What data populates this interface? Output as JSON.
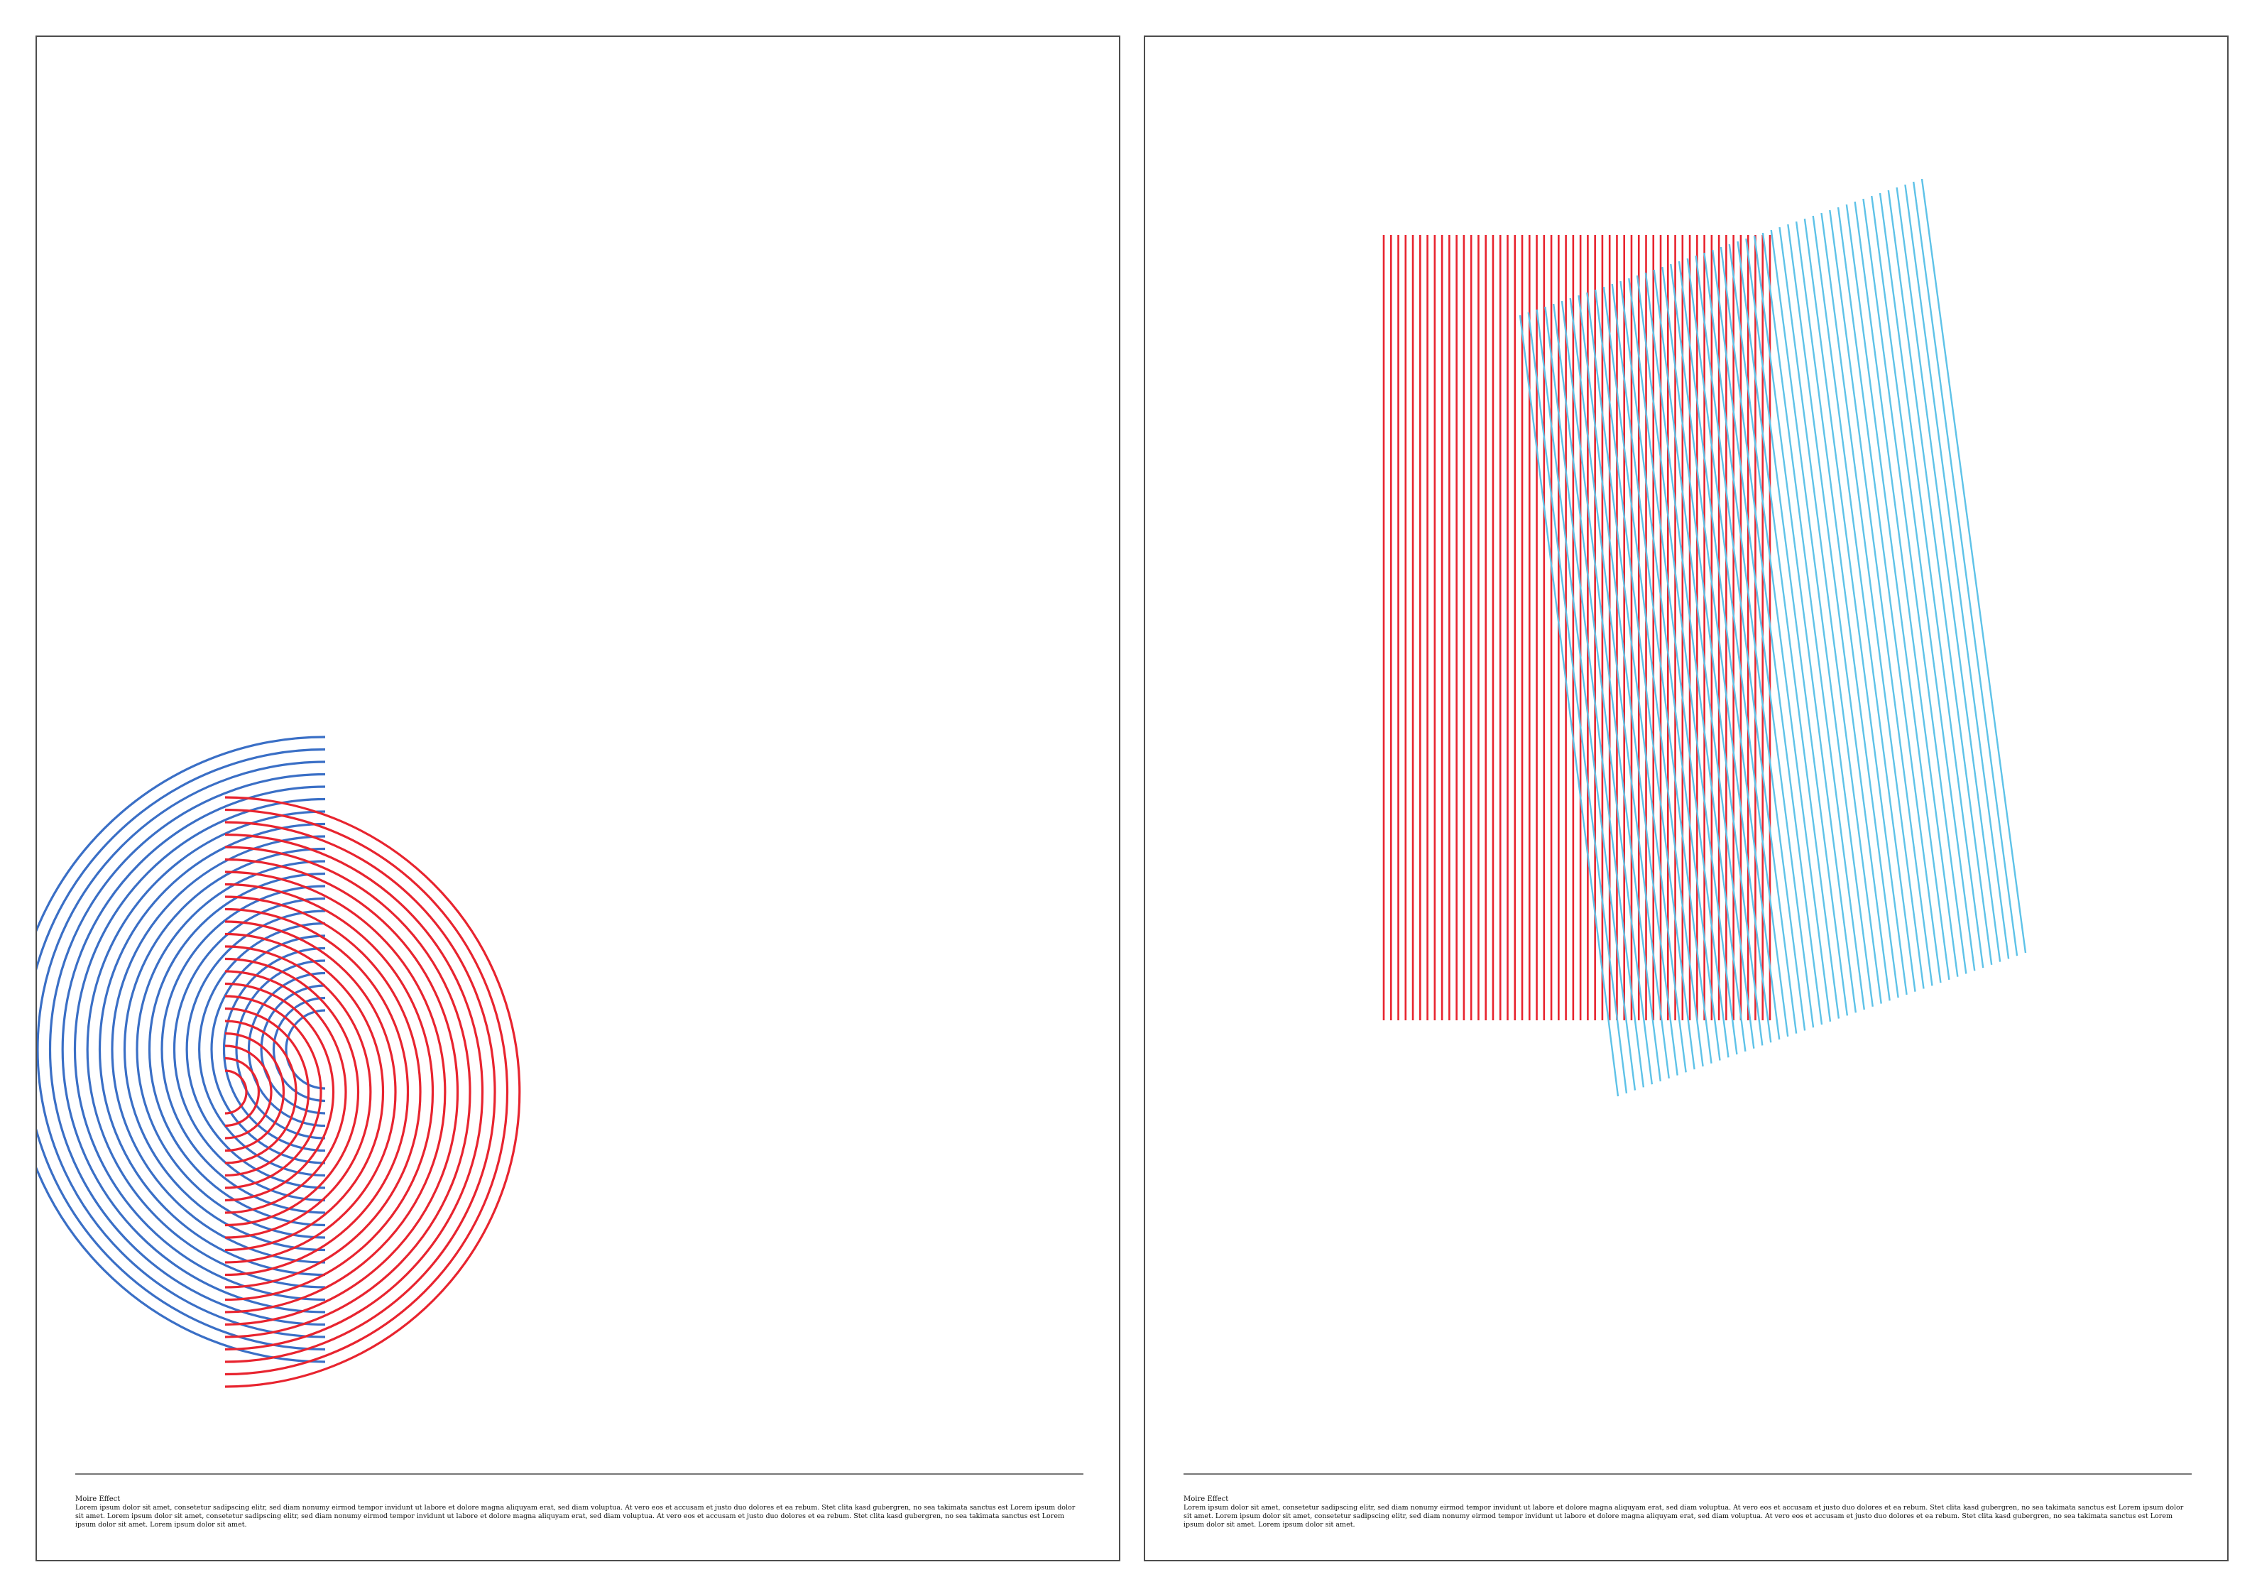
{
  "colors": {
    "red": "#e8242f",
    "blue": "#3a6fc6",
    "light_blue": "#5ec2e8",
    "frame": "#4d4d4d"
  },
  "posters": [
    {
      "artwork": "concentric-semicircles",
      "caption_title": "Moire Effect",
      "caption_body": "Lorem ipsum dolor sit amet, consetetur sadipscing elitr, sed diam nonumy eirmod tempor invidunt ut labore et dolore magna aliquyam erat, sed diam voluptua. At vero eos et accusam et justo duo dolores et ea rebum. Stet clita kasd gubergren, no sea takimata sanctus est Lorem ipsum dolor sit amet. Lorem ipsum dolor sit amet, consetetur sadipscing elitr, sed diam nonumy eirmod tempor invidunt ut labore et dolore magna aliquyam erat, sed diam voluptua. At vero eos et accusam et justo duo dolores et ea rebum. Stet clita kasd gubergren, no sea takimata sanctus est Lorem ipsum dolor sit amet. Lorem ipsum dolor sit amet."
    },
    {
      "artwork": "rotated-line-grids",
      "caption_title": "Moire Effect",
      "caption_body": "Lorem ipsum dolor sit amet, consetetur sadipscing elitr, sed diam nonumy eirmod tempor invidunt ut labore et dolore magna aliquyam erat, sed diam voluptua. At vero eos et accusam et justo duo dolores et ea rebum. Stet clita kasd gubergren, no sea takimata sanctus est Lorem ipsum dolor sit amet. Lorem ipsum dolor sit amet, consetetur sadipscing elitr, sed diam nonumy eirmod tempor invidunt ut labore et dolore magna aliquyam erat, sed diam voluptua. At vero eos et accusam et justo duo dolores et ea rebum. Stet clita kasd gubergren, no sea takimata sanctus est Lorem ipsum dolor sit amet. Lorem ipsum dolor sit amet."
    }
  ]
}
